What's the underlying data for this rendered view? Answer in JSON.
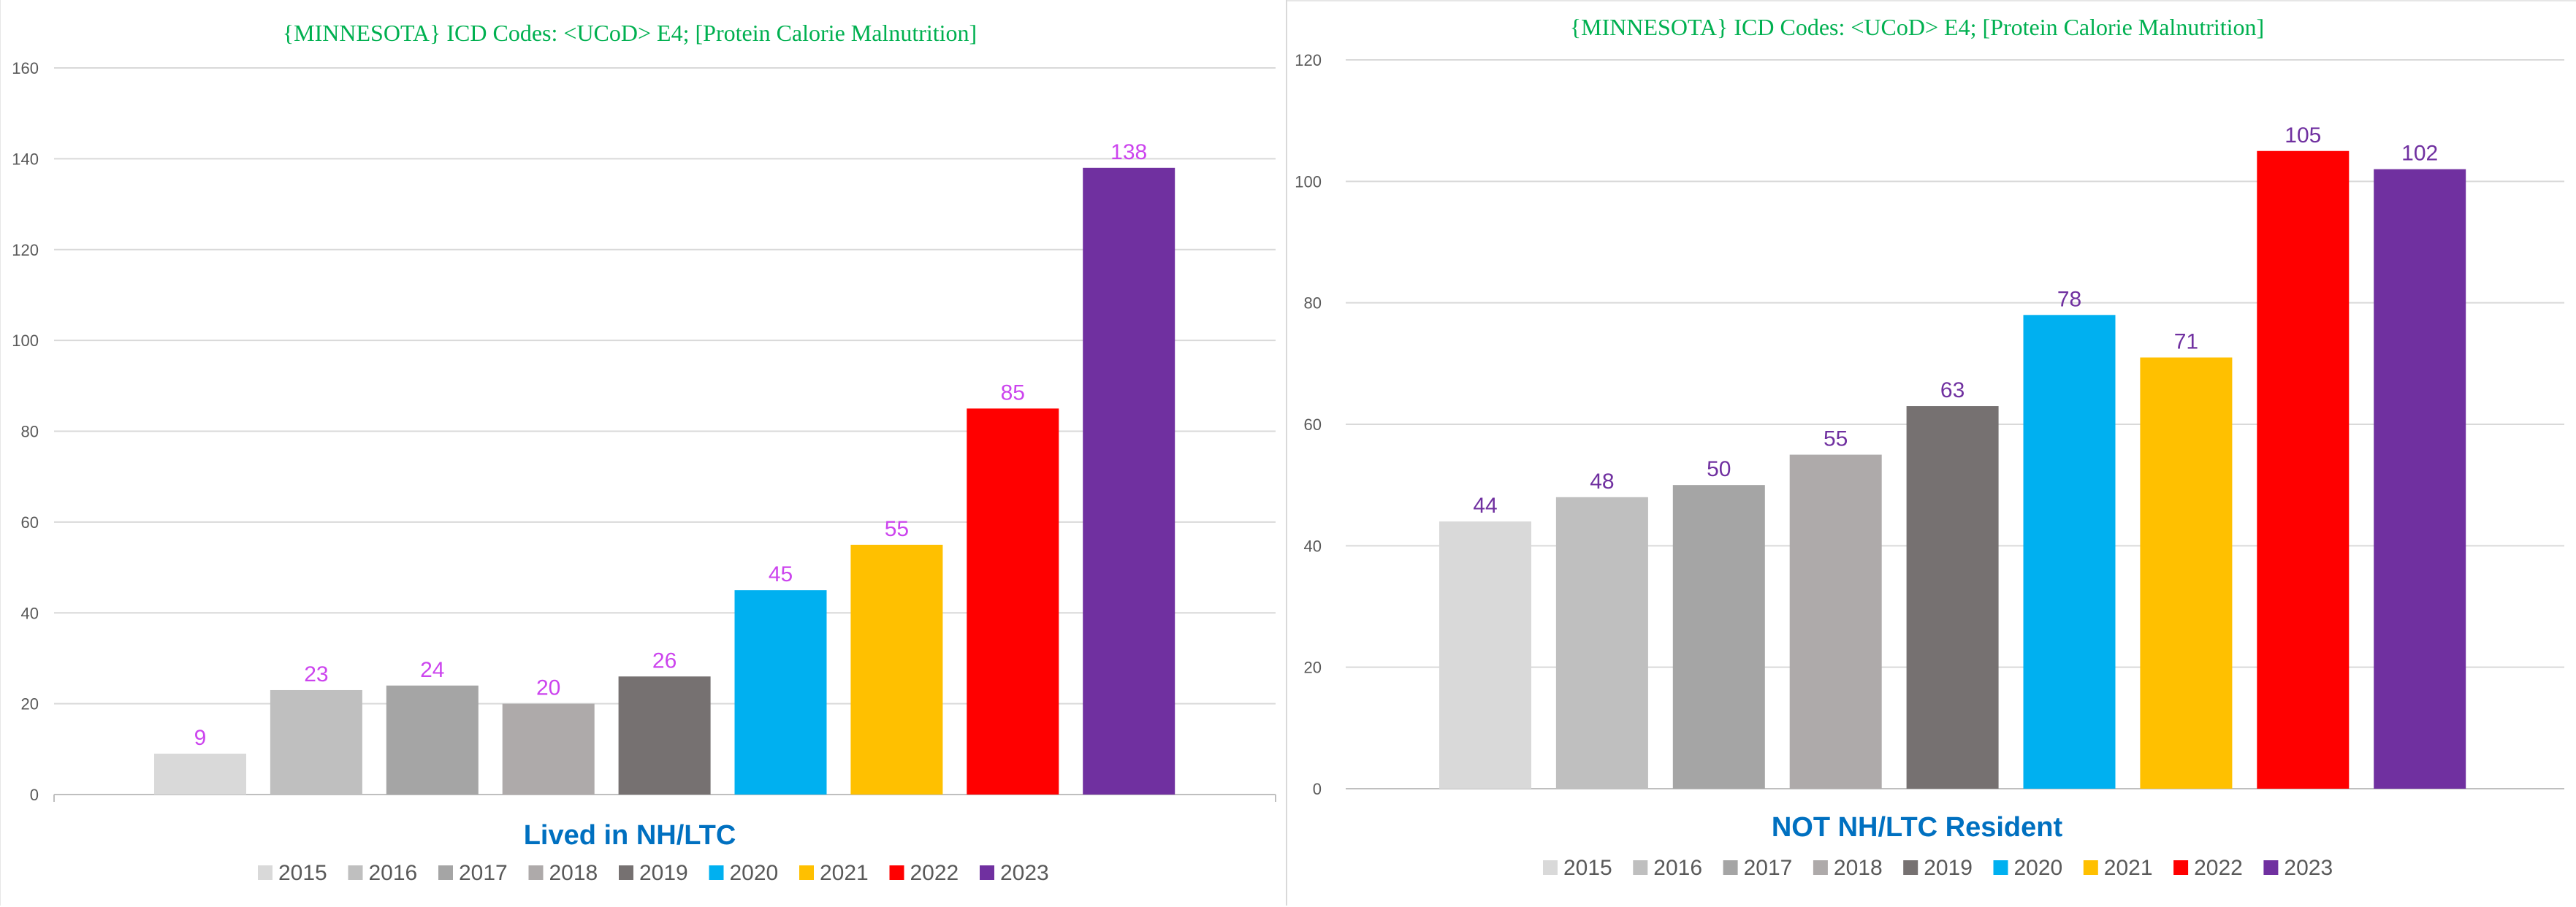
{
  "chart_data": [
    {
      "type": "bar",
      "title": "{MINNESOTA}  ICD Codes: <UCoD> E4;  [Protein Calorie Malnutrition]",
      "subtitle": "Lived in NH/LTC",
      "categories": [
        "2015",
        "2016",
        "2017",
        "2018",
        "2019",
        "2020",
        "2021",
        "2022",
        "2023"
      ],
      "values": [
        9,
        23,
        24,
        20,
        26,
        45,
        55,
        85,
        138
      ],
      "value_labels": [
        "9",
        "23",
        "24",
        "20",
        "26",
        "45",
        "55",
        "85",
        "138"
      ],
      "ylim": [
        0,
        160
      ],
      "yticks": [
        "0",
        "20",
        "40",
        "60",
        "80",
        "100",
        "120",
        "140",
        "160"
      ],
      "xlabel": "",
      "ylabel": "",
      "grid": true,
      "legend_position": "bottom",
      "label_color": "#cc44ee"
    },
    {
      "type": "bar",
      "title": "{MINNESOTA}  ICD Codes: <UCoD> E4;  [Protein Calorie Malnutrition]",
      "subtitle": "NOT NH/LTC Resident",
      "categories": [
        "2015",
        "2016",
        "2017",
        "2018",
        "2019",
        "2020",
        "2021",
        "2022",
        "2023"
      ],
      "values": [
        44,
        48,
        50,
        55,
        63,
        78,
        71,
        105,
        102
      ],
      "value_labels": [
        "44",
        "48",
        "50",
        "55",
        "63",
        "78",
        "71",
        "105",
        "102"
      ],
      "ylim": [
        0,
        120
      ],
      "yticks": [
        "0",
        "20",
        "40",
        "60",
        "80",
        "100",
        "120"
      ],
      "xlabel": "",
      "ylabel": "",
      "grid": true,
      "legend_position": "bottom",
      "label_color": "#7030a0"
    }
  ],
  "series_colors": [
    "#d9d9d9",
    "#bfbfbf",
    "#a5a5a5",
    "#aeaaaa",
    "#767171",
    "#00b0f0",
    "#ffc000",
    "#ff0000",
    "#7030a0"
  ]
}
